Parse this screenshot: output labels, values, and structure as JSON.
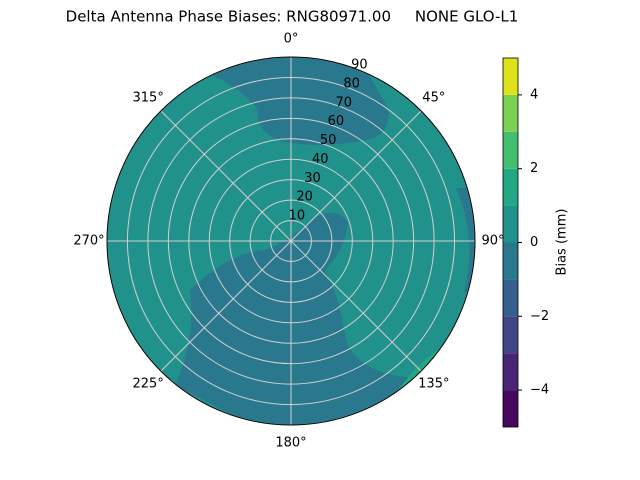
{
  "chart_data": {
    "type": "polar_contour",
    "title": "Delta Antenna Phase Biases: RNG80971.00     NONE GLO-L1",
    "rlim": [
      0,
      90
    ],
    "rticks": [
      10,
      20,
      30,
      40,
      50,
      60,
      70,
      80,
      90
    ],
    "thetaticks": [
      {
        "value": 0,
        "label": "0°"
      },
      {
        "value": 45,
        "label": "45°"
      },
      {
        "value": 90,
        "label": "90°"
      },
      {
        "value": 135,
        "label": "135°"
      },
      {
        "value": 180,
        "label": "180°"
      },
      {
        "value": 225,
        "label": "225°"
      },
      {
        "value": 270,
        "label": "270°"
      },
      {
        "value": 315,
        "label": "315°"
      }
    ],
    "grid": true,
    "levels": [
      -5,
      -4,
      -3,
      -2,
      -1,
      0,
      1,
      2,
      3,
      4,
      5
    ],
    "colors": [
      "#46085c",
      "#482576",
      "#414487",
      "#355f8d",
      "#2a788e",
      "#21918c",
      "#22a884",
      "#44bf70",
      "#7ad151",
      "#dde318"
    ],
    "regions": [
      {
        "value": 0.5
      },
      {
        "value": -0.5
      },
      {
        "value": -0.5
      },
      {
        "value": -0.5
      },
      {
        "value": 1.5
      }
    ],
    "colorbar_label": "Bias (mm)",
    "clim": [
      -5,
      5
    ],
    "cticks": [
      {
        "value": -4,
        "label": "−4"
      },
      {
        "value": -2,
        "label": "−2"
      },
      0,
      2,
      4
    ]
  }
}
